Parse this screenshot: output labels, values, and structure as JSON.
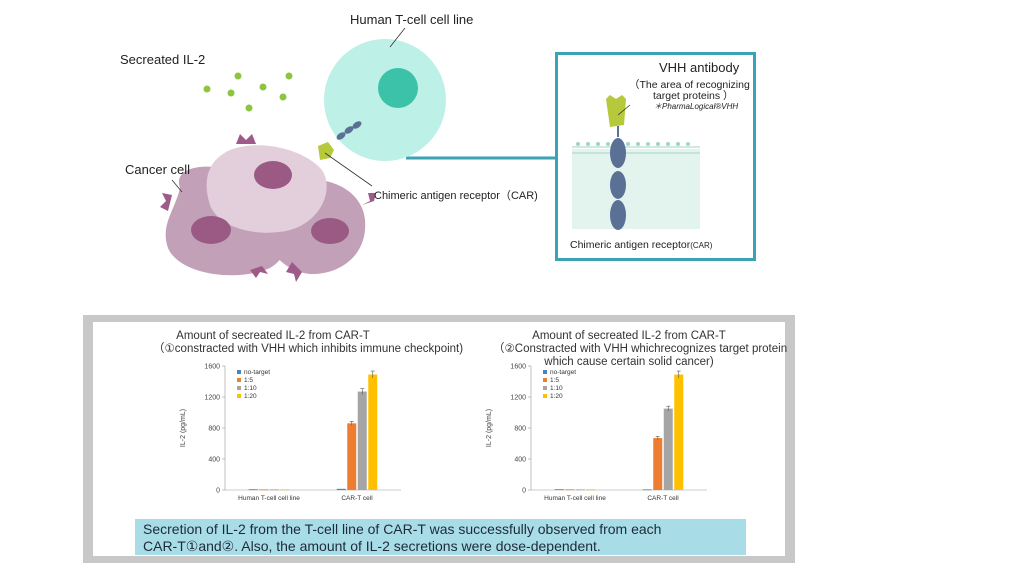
{
  "diagram": {
    "label_tcell": "Human T-cell cell line",
    "label_il2": "Secreated IL-2",
    "label_cancer": "Cancer cell",
    "label_car": "Chimeric antigen receptor（CAR)"
  },
  "vhh_box": {
    "title": "VHH antibody",
    "subtitle_line1": "（The area of recognizing",
    "subtitle_line2": "target proteins ）",
    "brand": "＊PharmaLogical®VHH",
    "bottom_label_main": "Chimeric antigen receptor",
    "bottom_label_suffix": "(CAR)"
  },
  "chart_data": [
    {
      "type": "bar",
      "title_line1": "Amount of secreated IL-2  from CAR-T",
      "title_line2": "（①constracted with VHH which inhibits immune checkpoint)",
      "title_line3": "",
      "ylabel": "IL-2 (pg/mL)",
      "ylim": [
        0,
        1600
      ],
      "yticks": [
        "0",
        "400",
        "800",
        "1200",
        "1600"
      ],
      "categories": [
        "Human T-cell cell line",
        "CAR-T cell"
      ],
      "series": [
        {
          "name": "no-target",
          "color": "#4f81bd",
          "values": [
            10,
            15
          ]
        },
        {
          "name": "1:5",
          "color": "#ed7d31",
          "values": [
            8,
            860
          ]
        },
        {
          "name": "1:10",
          "color": "#a5a5a5",
          "values": [
            8,
            1270
          ]
        },
        {
          "name": "1:20",
          "color": "#ffc000",
          "values": [
            8,
            1490
          ]
        }
      ]
    },
    {
      "type": "bar",
      "title_line1": "Amount of secreated IL-2 from CAR-T",
      "title_line2": "（②Constracted with VHH whichrecognizes target protein",
      "title_line3": "which cause certain solid cancer)",
      "ylabel": "IL-2 (pg/mL)",
      "ylim": [
        0,
        1600
      ],
      "yticks": [
        "0",
        "400",
        "800",
        "1200",
        "1600"
      ],
      "categories": [
        "Human T-cell cell line",
        "CAR-T cell"
      ],
      "series": [
        {
          "name": "no-target",
          "color": "#4f81bd",
          "values": [
            10,
            8
          ]
        },
        {
          "name": "1:5",
          "color": "#ed7d31",
          "values": [
            8,
            670
          ]
        },
        {
          "name": "1:10",
          "color": "#a5a5a5",
          "values": [
            8,
            1050
          ]
        },
        {
          "name": "1:20",
          "color": "#ffc000",
          "values": [
            8,
            1490
          ]
        }
      ]
    }
  ],
  "conclusion": {
    "line1": "Secretion of IL-2 from the T-cell line of CAR-T was successfully observed from each",
    "line2": "CAR-T①and②. Also, the amount of IL-2 secretions were dose-dependent."
  },
  "colors": {
    "tcell": "#bdf0e6",
    "tcell_nucleus": "#3cc2a8",
    "il2_dot": "#8cc63f",
    "cancer_cell": "#c2a1b8",
    "cancer_light": "#e3cfdc",
    "cancer_nucleus": "#9a5a84",
    "receptor": "#9e5b8a",
    "car_segment": "#5b7095",
    "vhh": "#b6c93a",
    "box_border": "#3ba3b5"
  }
}
